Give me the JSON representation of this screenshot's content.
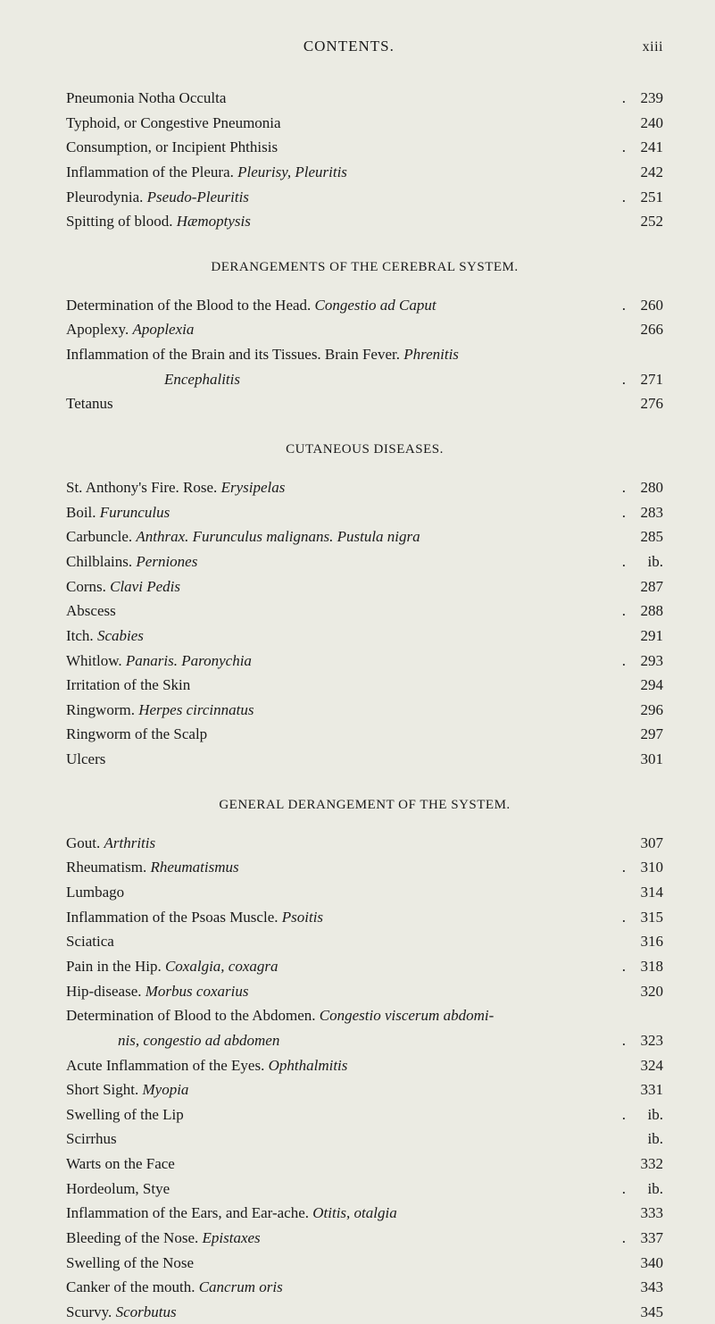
{
  "colors": {
    "background": "#ebebe3",
    "text": "#1a1a1a"
  },
  "typography": {
    "font_family": "Times New Roman, Georgia, serif",
    "body_size": 17,
    "heading_size": 15,
    "line_height": 1.45
  },
  "header": {
    "title": "CONTENTS.",
    "page_number": "xiii"
  },
  "block1": {
    "entries": [
      {
        "text": "Pneumonia Notha Occulta",
        "page": "239",
        "dot": true
      },
      {
        "text": "Typhoid, or Congestive Pneumonia",
        "page": "240",
        "dot": false
      },
      {
        "text": "Consumption, or Incipient Phthisis",
        "page": "241",
        "dot": true
      },
      {
        "text_pre": "Inflammation of the Pleura.  ",
        "text_em": "Pleurisy, Pleuritis",
        "page": "242",
        "dot": false
      },
      {
        "text_pre": "Pleurodynia.  ",
        "text_em": "Pseudo-Pleuritis",
        "page": "251",
        "dot": true
      },
      {
        "text_pre": "Spitting of blood.  ",
        "text_em": "Hæmoptysis",
        "page": "252",
        "dot": false
      }
    ]
  },
  "section2": {
    "heading": "DERANGEMENTS OF THE CEREBRAL SYSTEM.",
    "entries": [
      {
        "text_pre": "Determination of the Blood to the Head.  ",
        "text_em": "Congestio ad Caput",
        "page": "260",
        "dot": true
      },
      {
        "text_pre": "Apoplexy.  ",
        "text_em": "Apoplexia",
        "page": "266",
        "dot": false
      },
      {
        "text_pre": "Inflammation of the Brain and its Tissues.   Brain Fever.   ",
        "text_em": "Phrenitis",
        "page": "",
        "dot": false
      },
      {
        "text_em": "Encephalitis",
        "page": "271",
        "dot": true,
        "sub": true
      },
      {
        "text": "Tetanus",
        "page": "276",
        "dot": false
      }
    ]
  },
  "section3": {
    "heading": "CUTANEOUS DISEASES.",
    "entries": [
      {
        "text_pre": "St. Anthony's Fire.  Rose.  ",
        "text_em": "Erysipelas",
        "page": "280",
        "dot": true
      },
      {
        "text_pre": "Boil.  ",
        "text_em": "Furunculus",
        "page": "283",
        "dot": true
      },
      {
        "text_pre": "Carbuncle.  ",
        "text_em": "Anthrax.   Furunculus malignans.   Pustula nigra",
        "page": "285",
        "dot": false
      },
      {
        "text_pre": "Chilblains.  ",
        "text_em": "Perniones",
        "page": "ib.",
        "dot": true
      },
      {
        "text_pre": "Corns.  ",
        "text_em": "Clavi Pedis",
        "page": "287",
        "dot": false
      },
      {
        "text": "Abscess",
        "page": "288",
        "dot": true
      },
      {
        "text_pre": "Itch.  ",
        "text_em": "Scabies",
        "page": "291",
        "dot": false
      },
      {
        "text_pre": "Whitlow.  ",
        "text_em": "Panaris.   Paronychia",
        "page": "293",
        "dot": true
      },
      {
        "text": "Irritation of the Skin",
        "page": "294",
        "dot": false
      },
      {
        "text_pre": "Ringworm.  ",
        "text_em": "Herpes circinnatus",
        "page": "296",
        "dot": false
      },
      {
        "text": "Ringworm of the Scalp",
        "page": "297",
        "dot": false
      },
      {
        "text": "Ulcers",
        "page": "301",
        "dot": false
      }
    ]
  },
  "section4": {
    "heading": "GENERAL DERANGEMENT OF THE SYSTEM.",
    "entries": [
      {
        "text_pre": "Gout.  ",
        "text_em": "Arthritis",
        "page": "307",
        "dot": false
      },
      {
        "text_pre": "Rheumatism.  ",
        "text_em": "Rheumatismus",
        "page": "310",
        "dot": true
      },
      {
        "text": "Lumbago",
        "page": "314",
        "dot": false
      },
      {
        "text_pre": "Inflammation of the Psoas Muscle.  ",
        "text_em": "Psoitis",
        "page": "315",
        "dot": true
      },
      {
        "text": "Sciatica",
        "page": "316",
        "dot": false
      },
      {
        "text_pre": "Pain in the Hip.  ",
        "text_em": "Coxalgia, coxagra",
        "page": "318",
        "dot": true
      },
      {
        "text_pre": "Hip-disease.  ",
        "text_em": "Morbus coxarius",
        "page": "320",
        "dot": false
      },
      {
        "text_pre": "Determination of Blood to the Abdomen.   ",
        "text_em": "Congestio viscerum abdomi-",
        "page": "",
        "dot": false
      },
      {
        "text_em": "nis, congestio ad abdomen",
        "page": "323",
        "dot": true,
        "indent": true
      },
      {
        "text_pre": "Acute Inflammation of the Eyes.  ",
        "text_em": "Ophthalmitis",
        "page": "324",
        "dot": false
      },
      {
        "text_pre": "Short Sight.  ",
        "text_em": "Myopia",
        "page": "331",
        "dot": false
      },
      {
        "text": "Swelling of the Lip",
        "page": "ib.",
        "dot": true
      },
      {
        "text": "Scirrhus",
        "page": "ib.",
        "dot": false
      },
      {
        "text": "Warts on the Face",
        "page": "332",
        "dot": false
      },
      {
        "text": "Hordeolum, Stye",
        "page": "ib.",
        "dot": true
      },
      {
        "text_pre": "Inflammation of the Ears, and Ear-ache.   ",
        "text_em": "Otitis, otalgia",
        "page": "333",
        "dot": false
      },
      {
        "text_pre": "Bleeding of the Nose.  ",
        "text_em": "Epistaxes",
        "page": "337",
        "dot": true
      },
      {
        "text": "Swelling of the Nose",
        "page": "340",
        "dot": false
      },
      {
        "text_pre": "Canker of the mouth.  ",
        "text_em": "Cancrum oris",
        "page": "343",
        "dot": false
      },
      {
        "text_pre": "Scurvy.  ",
        "text_em": "Scorbutus",
        "page": "345",
        "dot": false
      }
    ]
  }
}
